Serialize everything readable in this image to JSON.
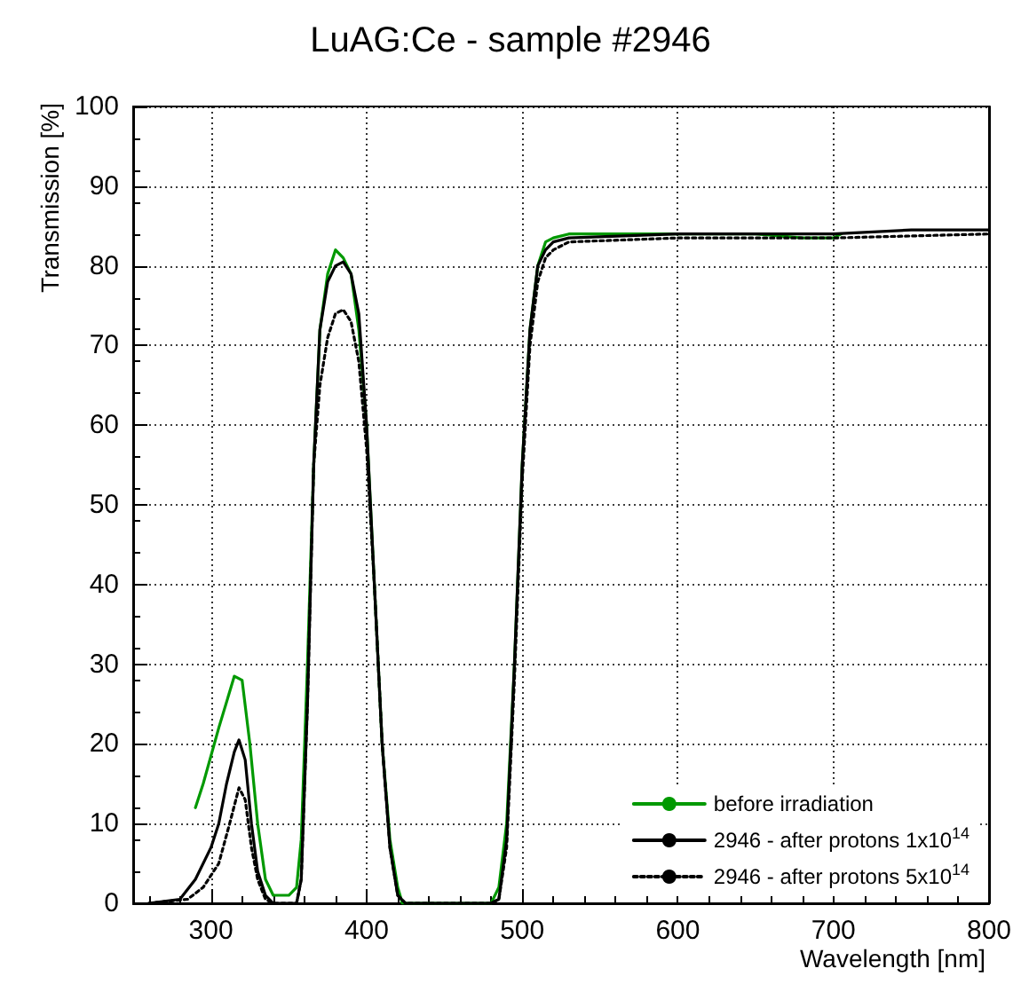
{
  "chart_data": {
    "type": "line",
    "title": "LuAG:Ce - sample #2946",
    "xlabel": "Wavelength [nm]",
    "ylabel": "Transmission [%]",
    "xlim": [
      250,
      800
    ],
    "xticks": [
      300,
      400,
      500,
      600,
      700,
      800
    ],
    "ylim": [
      0,
      100
    ],
    "yticks": [
      0,
      10,
      20,
      30,
      40,
      50,
      60,
      70,
      80,
      90,
      100
    ],
    "grid": true,
    "legend": "bottom right",
    "marker": "none",
    "series": [
      {
        "name": "before irradiation",
        "color": "#009900",
        "line_style": "solid",
        "x": [
          290,
          295,
          305,
          315,
          320,
          325,
          330,
          335,
          340,
          350,
          355,
          358,
          362,
          366,
          370,
          375,
          380,
          385,
          390,
          395,
          400,
          405,
          410,
          415,
          420,
          423,
          480,
          485,
          490,
          495,
          500,
          505,
          510,
          515,
          520,
          530,
          550,
          600,
          650,
          680,
          700,
          705
        ],
        "values": [
          12,
          15,
          22,
          28.5,
          28,
          20,
          10,
          3,
          1,
          1,
          2,
          8,
          30,
          55,
          72,
          79,
          82,
          81,
          79,
          72,
          60,
          40,
          20,
          8,
          2,
          0,
          0,
          2,
          10,
          30,
          55,
          72,
          80,
          83,
          83.5,
          84,
          84,
          84,
          84,
          83.5,
          83.5,
          84
        ]
      },
      {
        "name": "2946 - after protons 1x10$^{14}$",
        "color": "#000000",
        "line_style": "solid",
        "x": [
          260,
          280,
          290,
          300,
          305,
          310,
          315,
          318,
          322,
          326,
          330,
          335,
          340,
          355,
          358,
          362,
          366,
          370,
          375,
          380,
          385,
          390,
          395,
          400,
          405,
          410,
          415,
          420,
          425,
          480,
          485,
          490,
          495,
          500,
          505,
          510,
          515,
          520,
          530,
          600,
          700,
          750,
          800
        ],
        "values": [
          0,
          0.5,
          3,
          7,
          10,
          15,
          19,
          20.5,
          18,
          10,
          4,
          1,
          0,
          0,
          3,
          25,
          55,
          72,
          78,
          80,
          80.5,
          79,
          74,
          60,
          40,
          20,
          7,
          1,
          0,
          0,
          0.5,
          8,
          30,
          55,
          72,
          80,
          82,
          83,
          83.5,
          84,
          84,
          84.5,
          84.5
        ]
      },
      {
        "name": "2946 - after protons 5x10$^{14}$",
        "color": "#000000",
        "line_style": "dotted",
        "x": [
          260,
          285,
          295,
          305,
          312,
          318,
          322,
          326,
          330,
          335,
          340,
          355,
          358,
          362,
          366,
          370,
          375,
          380,
          385,
          390,
          395,
          400,
          405,
          410,
          415,
          420,
          425,
          480,
          485,
          490,
          495,
          500,
          505,
          510,
          515,
          520,
          530,
          600,
          700,
          800
        ],
        "values": [
          0,
          0.5,
          2,
          5,
          10,
          14.5,
          13,
          7,
          3,
          0.5,
          0,
          0,
          3,
          25,
          55,
          65,
          71,
          74,
          74.5,
          73,
          68,
          57,
          40,
          20,
          7,
          1,
          0,
          0,
          0.5,
          7,
          28,
          53,
          70,
          78,
          81,
          82,
          83,
          83.5,
          83.5,
          84
        ]
      }
    ]
  }
}
